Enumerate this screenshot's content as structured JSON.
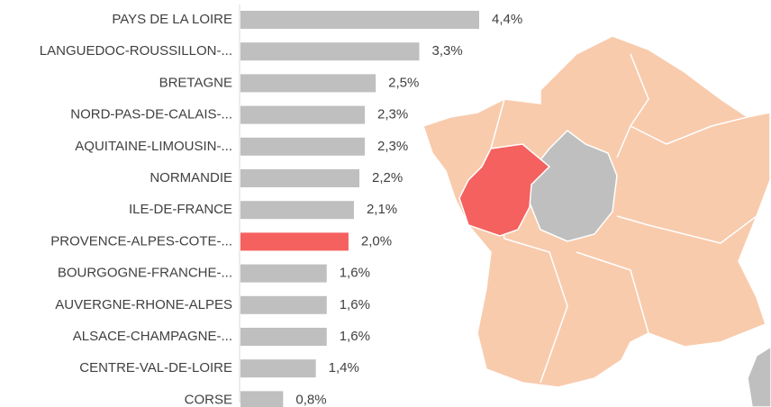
{
  "chart_data": {
    "type": "hbar",
    "categories": [
      "PAYS DE LA LOIRE",
      "LANGUEDOC-ROUSSILLON-...",
      "BRETAGNE",
      "NORD-PAS-DE-CALAIS-...",
      "AQUITAINE-LIMOUSIN-...",
      "NORMANDIE",
      "ILE-DE-FRANCE",
      "PROVENCE-ALPES-COTE-...",
      "BOURGOGNE-FRANCHE-...",
      "AUVERGNE-RHONE-ALPES",
      "ALSACE-CHAMPAGNE-...",
      "CENTRE-VAL-DE-LOIRE",
      "CORSE"
    ],
    "values": [
      4.4,
      3.3,
      2.5,
      2.3,
      2.3,
      2.2,
      2.1,
      2.0,
      1.6,
      1.6,
      1.6,
      1.4,
      0.8
    ],
    "value_labels": [
      "4,4%",
      "3,3%",
      "2,5%",
      "2,3%",
      "2,3%",
      "2,2%",
      "2,1%",
      "2,0%",
      "1,6%",
      "1,6%",
      "1,6%",
      "1,4%",
      "0,8%"
    ],
    "colors": [
      "#bfbfbf",
      "#bfbfbf",
      "#bfbfbf",
      "#bfbfbf",
      "#bfbfbf",
      "#bfbfbf",
      "#bfbfbf",
      "#f4615f",
      "#bfbfbf",
      "#bfbfbf",
      "#bfbfbf",
      "#bfbfbf",
      "#bfbfbf"
    ]
  }
}
